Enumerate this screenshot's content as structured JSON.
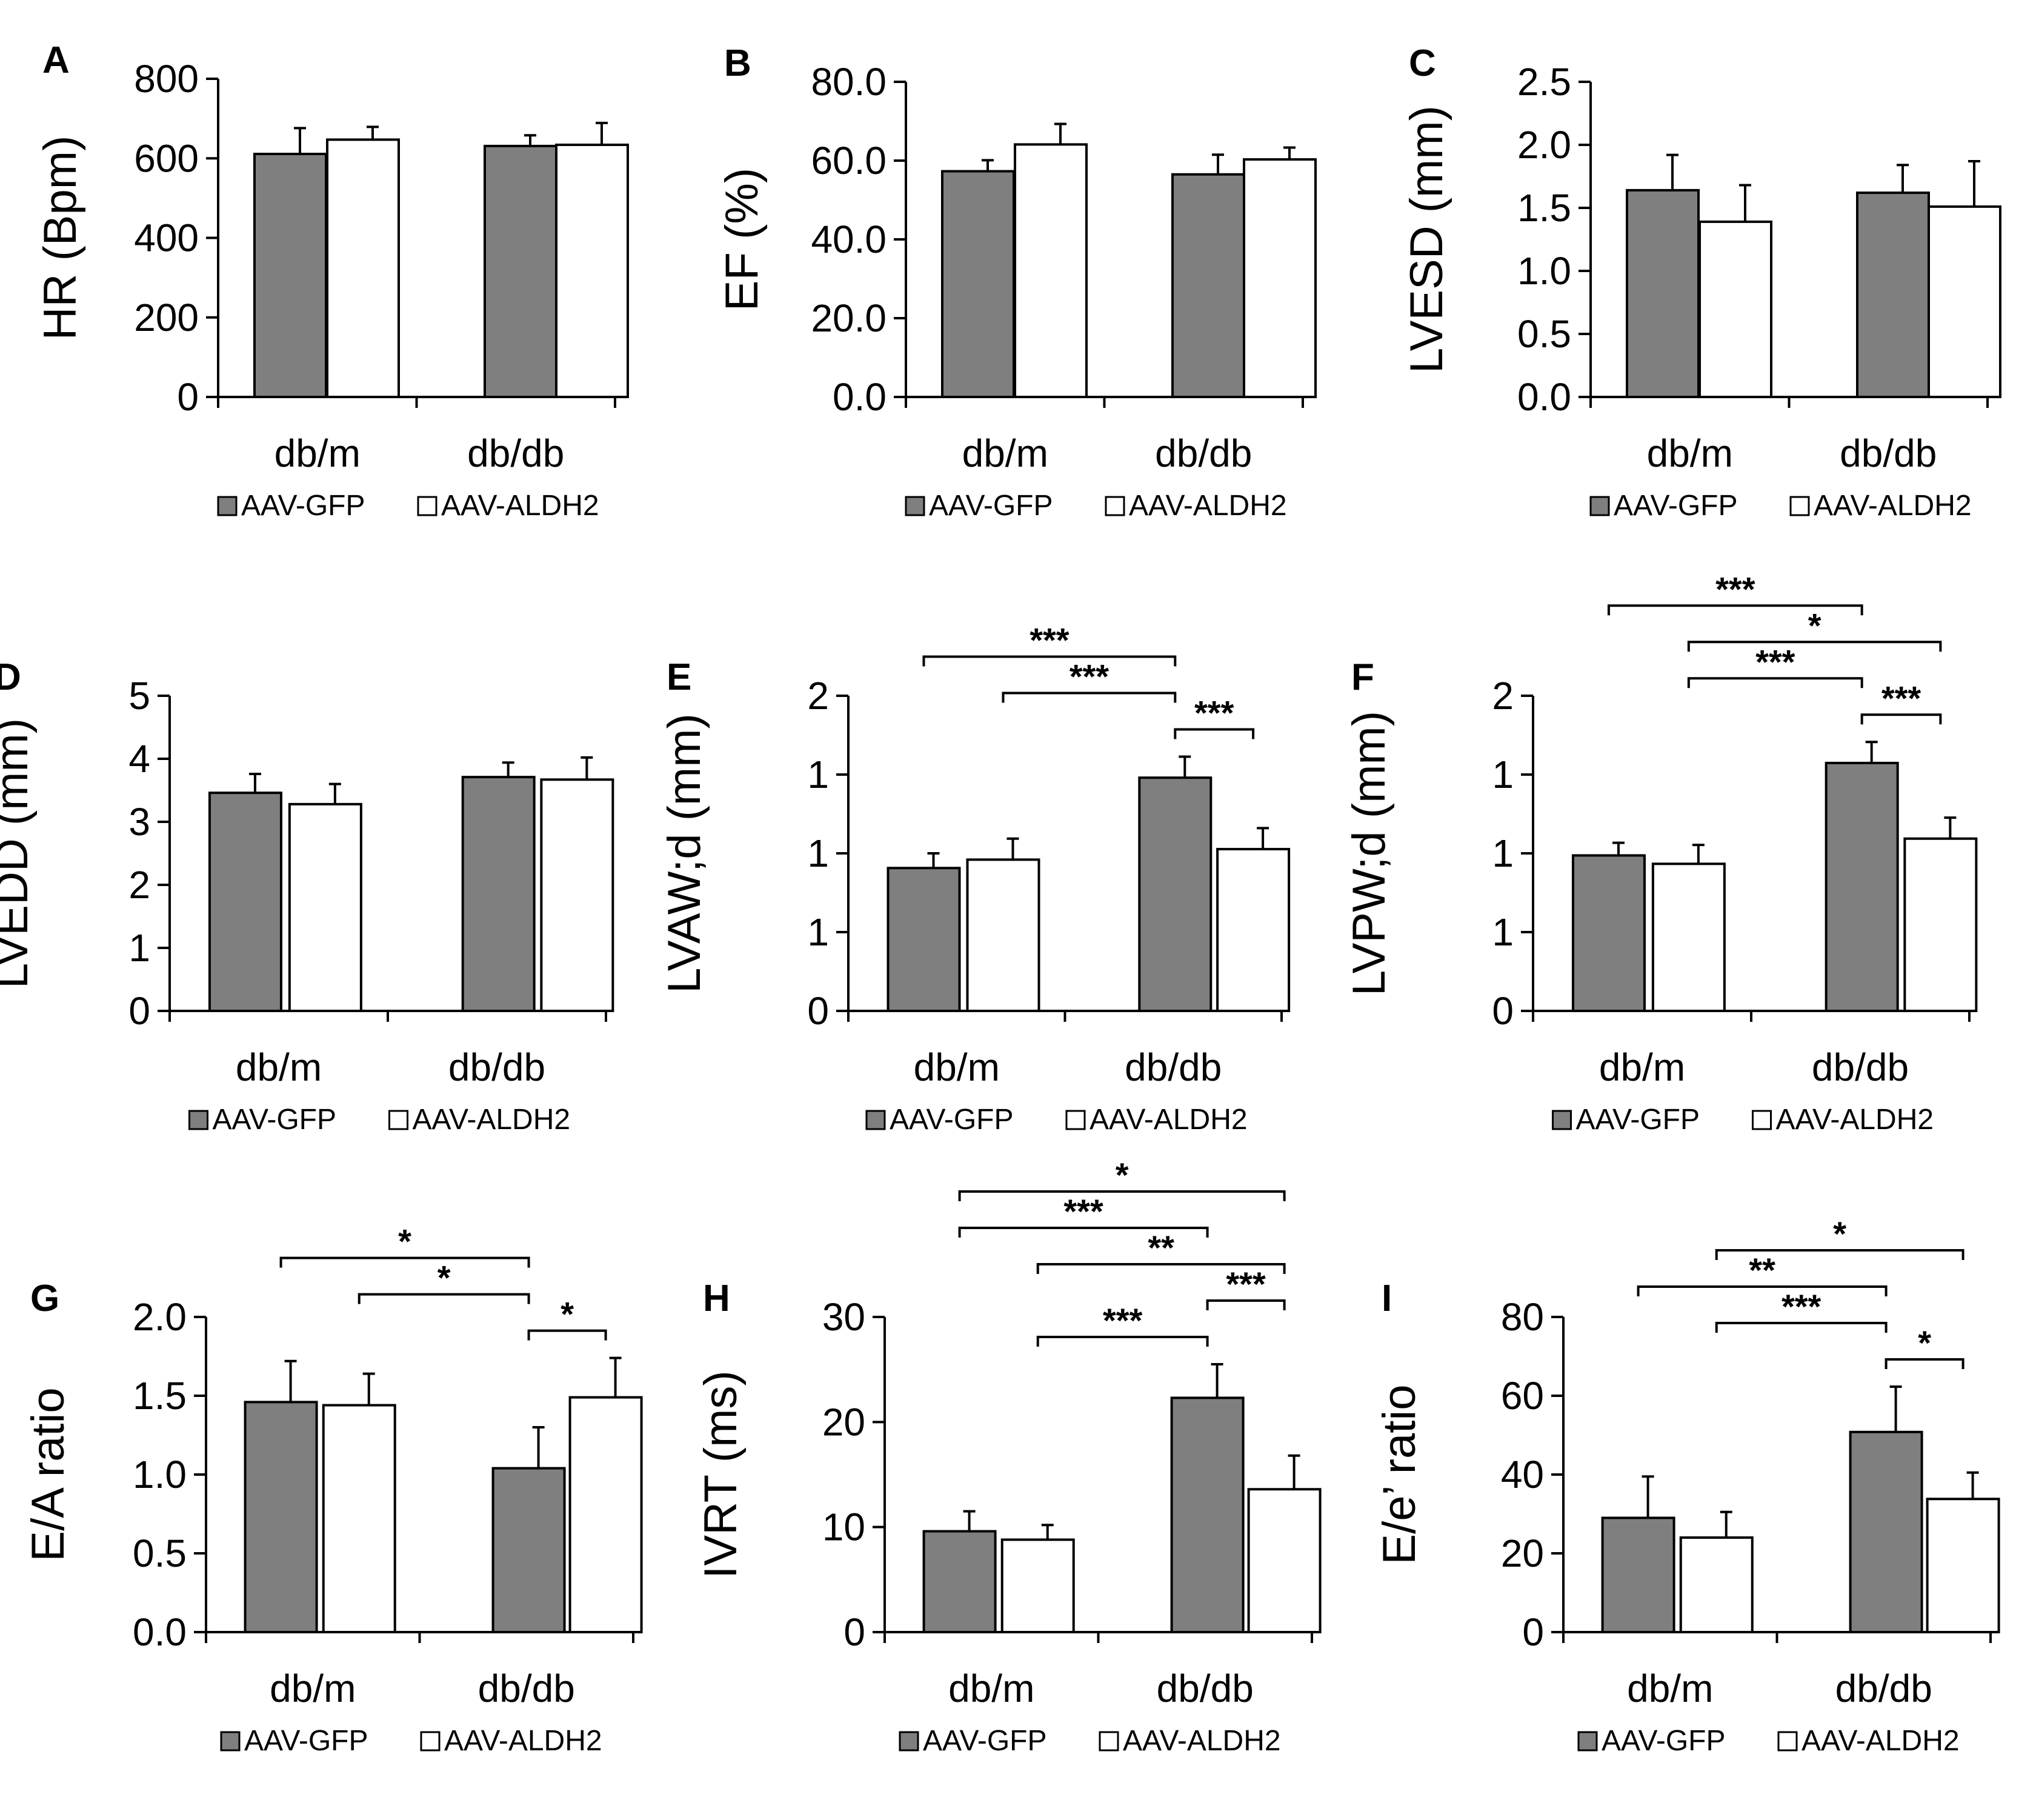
{
  "figure": {
    "categories": [
      "db/m",
      "db/db"
    ],
    "legend": [
      "AAV-GFP",
      "AAV-ALDH2"
    ],
    "colors": {
      "gfp": "#7f7f7f",
      "aldh2": "#ffffff",
      "stroke": "#000000"
    }
  },
  "chart_data": [
    {
      "panel": "A",
      "type": "bar",
      "ylabel": "HR (Bpm)",
      "ylim": [
        0,
        800
      ],
      "yticks": [
        "0",
        "200",
        "400",
        "600",
        "800"
      ],
      "categories": [
        "db/m",
        "db/db"
      ],
      "series": [
        {
          "name": "AAV-GFP",
          "values": [
            611,
            631
          ],
          "errors": [
            65,
            27
          ]
        },
        {
          "name": "AAV-ALDH2",
          "values": [
            647,
            634
          ],
          "errors": [
            32,
            55
          ]
        }
      ],
      "significance": []
    },
    {
      "panel": "B",
      "type": "bar",
      "ylabel": "EF (%)",
      "ylim": [
        0,
        80
      ],
      "yticks": [
        "0.0",
        "20.0",
        "40.0",
        "60.0",
        "80.0"
      ],
      "categories": [
        "db/m",
        "db/db"
      ],
      "series": [
        {
          "name": "AAV-GFP",
          "values": [
            57.3,
            56.5
          ],
          "errors": [
            2.8,
            5.0
          ]
        },
        {
          "name": "AAV-ALDH2",
          "values": [
            64.1,
            60.3
          ],
          "errors": [
            5.2,
            3.0
          ]
        }
      ],
      "significance": []
    },
    {
      "panel": "C",
      "type": "bar",
      "ylabel": "LVESD (mm)",
      "ylim": [
        0,
        2.5
      ],
      "yticks": [
        "0.0",
        "0.5",
        "1.0",
        "1.5",
        "2.0",
        "2.5"
      ],
      "categories": [
        "db/m",
        "db/db"
      ],
      "series": [
        {
          "name": "AAV-GFP",
          "values": [
            1.64,
            1.62
          ],
          "errors": [
            0.28,
            0.22
          ]
        },
        {
          "name": "AAV-ALDH2",
          "values": [
            1.39,
            1.51
          ],
          "errors": [
            0.29,
            0.36
          ]
        }
      ],
      "significance": []
    },
    {
      "panel": "D",
      "type": "bar",
      "ylabel": "LVEDD (mm)",
      "ylim": [
        0,
        5
      ],
      "yticks": [
        "0",
        "1",
        "2",
        "3",
        "4",
        "5"
      ],
      "categories": [
        "db/m",
        "db/db"
      ],
      "series": [
        {
          "name": "AAV-GFP",
          "values": [
            3.46,
            3.71
          ],
          "errors": [
            0.3,
            0.23
          ]
        },
        {
          "name": "AAV-ALDH2",
          "values": [
            3.28,
            3.67
          ],
          "errors": [
            0.32,
            0.35
          ]
        }
      ],
      "significance": []
    },
    {
      "panel": "E",
      "type": "bar",
      "ylabel": "LVAW;d (mm)",
      "ylim": [
        0,
        1.5
      ],
      "yticks": [
        "0",
        "1",
        "1",
        "1",
        "2"
      ],
      "categories": [
        "db/m",
        "db/db"
      ],
      "series": [
        {
          "name": "AAV-GFP",
          "values": [
            0.68,
            1.11
          ],
          "errors": [
            0.07,
            0.1
          ]
        },
        {
          "name": "AAV-ALDH2",
          "values": [
            0.72,
            0.77
          ],
          "errors": [
            0.1,
            0.1
          ]
        }
      ],
      "significance": [
        {
          "from": 0,
          "to": 2,
          "label": "***"
        },
        {
          "from": 1,
          "to": 2,
          "label": "***"
        },
        {
          "from": 2,
          "to": 3,
          "label": "***"
        }
      ]
    },
    {
      "panel": "F",
      "type": "bar",
      "ylabel": "LVPW;d (mm)",
      "ylim": [
        0,
        1.5
      ],
      "yticks": [
        "0",
        "1",
        "1",
        "1",
        "2"
      ],
      "categories": [
        "db/m",
        "db/db"
      ],
      "series": [
        {
          "name": "AAV-GFP",
          "values": [
            0.74,
            1.18
          ],
          "errors": [
            0.06,
            0.1
          ]
        },
        {
          "name": "AAV-ALDH2",
          "values": [
            0.7,
            0.82
          ],
          "errors": [
            0.09,
            0.1
          ]
        }
      ],
      "significance": [
        {
          "from": 0,
          "to": 2,
          "label": "***"
        },
        {
          "from": 1,
          "to": 3,
          "label": "*"
        },
        {
          "from": 1,
          "to": 2,
          "label": "***"
        },
        {
          "from": 2,
          "to": 3,
          "label": "***"
        }
      ]
    },
    {
      "panel": "G",
      "type": "bar",
      "ylabel": "E/A ratio",
      "ylim": [
        0,
        2.0
      ],
      "yticks": [
        "0.0",
        "0.5",
        "1.0",
        "1.5",
        "2.0"
      ],
      "categories": [
        "db/m",
        "db/db"
      ],
      "series": [
        {
          "name": "AAV-GFP",
          "values": [
            1.46,
            1.04
          ],
          "errors": [
            0.26,
            0.26
          ]
        },
        {
          "name": "AAV-ALDH2",
          "values": [
            1.44,
            1.49
          ],
          "errors": [
            0.2,
            0.25
          ]
        }
      ],
      "significance": [
        {
          "from": 0,
          "to": 2,
          "label": "*"
        },
        {
          "from": 1,
          "to": 2,
          "label": "*"
        },
        {
          "from": 2,
          "to": 3,
          "label": "*"
        }
      ]
    },
    {
      "panel": "H",
      "type": "bar",
      "ylabel": "IVRT (ms)",
      "ylim": [
        0,
        30
      ],
      "yticks": [
        "0",
        "10",
        "20",
        "30"
      ],
      "categories": [
        "db/m",
        "db/db"
      ],
      "series": [
        {
          "name": "AAV-GFP",
          "values": [
            9.6,
            22.3
          ],
          "errors": [
            1.9,
            3.2
          ]
        },
        {
          "name": "AAV-ALDH2",
          "values": [
            8.8,
            13.6
          ],
          "errors": [
            1.4,
            3.2
          ]
        }
      ],
      "significance": [
        {
          "from": 0,
          "to": 3,
          "label": "*"
        },
        {
          "from": 0,
          "to": 2,
          "label": "***"
        },
        {
          "from": 1,
          "to": 3,
          "label": "**"
        },
        {
          "from": 2,
          "to": 3,
          "label": "***"
        },
        {
          "from": 1,
          "to": 2,
          "label": "***"
        }
      ]
    },
    {
      "panel": "I",
      "type": "bar",
      "ylabel": "E/e’ ratio",
      "ylim": [
        0,
        80
      ],
      "yticks": [
        "0",
        "20",
        "40",
        "60",
        "80"
      ],
      "categories": [
        "db/m",
        "db/db"
      ],
      "series": [
        {
          "name": "AAV-GFP",
          "values": [
            29.0,
            50.8
          ],
          "errors": [
            10.5,
            11.5
          ]
        },
        {
          "name": "AAV-ALDH2",
          "values": [
            24.0,
            33.8
          ],
          "errors": [
            6.5,
            6.7
          ]
        }
      ],
      "significance": [
        {
          "from": 1,
          "to": 3,
          "label": "*"
        },
        {
          "from": 0,
          "to": 2,
          "label": "**"
        },
        {
          "from": 1,
          "to": 2,
          "label": "***"
        },
        {
          "from": 2,
          "to": 3,
          "label": "*"
        }
      ]
    }
  ]
}
